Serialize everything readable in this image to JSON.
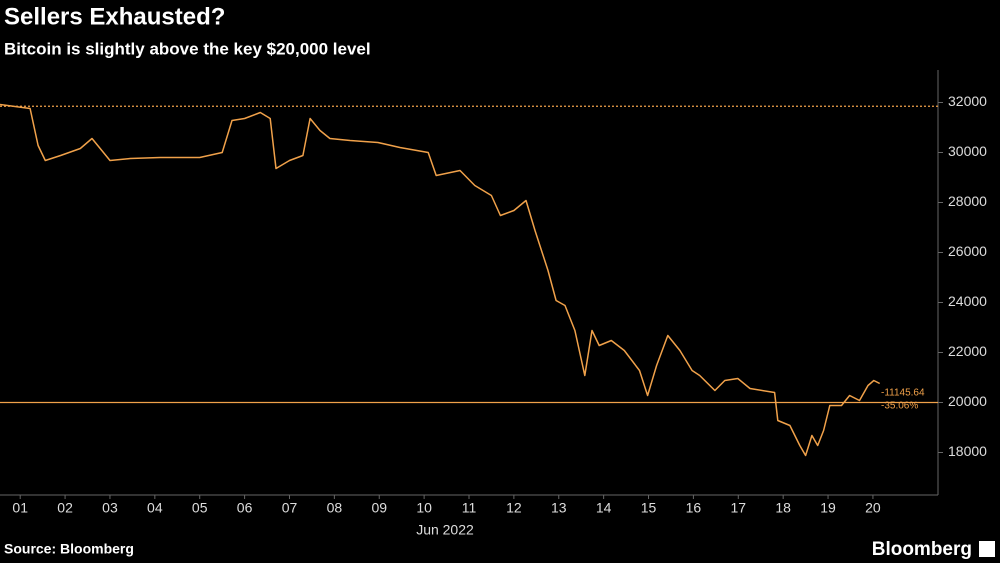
{
  "chart_data": {
    "type": "line",
    "title": "Sellers Exhausted?",
    "subtitle": "Bitcoin is slightly above the key $20,000 level",
    "x_label": "Jun 2022",
    "source": "Source: Bloomberg",
    "brand": "Bloomberg",
    "color": "#f0a14a",
    "x": [
      0.55,
      1.22,
      1.4,
      1.56,
      1.9,
      2.34,
      2.6,
      3.0,
      3.45,
      4.12,
      5.0,
      5.5,
      5.72,
      6.0,
      6.35,
      6.57,
      6.7,
      7.0,
      7.3,
      7.46,
      7.68,
      7.9,
      8.35,
      8.97,
      9.46,
      10.09,
      10.27,
      10.8,
      11.13,
      11.5,
      11.7,
      12.0,
      12.27,
      12.47,
      12.76,
      12.94,
      13.14,
      13.36,
      13.58,
      13.74,
      13.9,
      14.17,
      14.46,
      14.8,
      14.98,
      15.18,
      15.43,
      15.7,
      15.97,
      16.14,
      16.48,
      16.7,
      16.99,
      17.26,
      17.81,
      17.88,
      18.15,
      18.37,
      18.5,
      18.64,
      18.77,
      18.9,
      19.04,
      19.3,
      19.48,
      19.7,
      19.89,
      20.02,
      20.15
    ],
    "values": [
      31920,
      31760,
      30280,
      29680,
      29880,
      30160,
      30560,
      29680,
      29760,
      29800,
      29800,
      30000,
      31280,
      31360,
      31600,
      31360,
      29360,
      29680,
      29880,
      31360,
      30880,
      30560,
      30480,
      30400,
      30200,
      30000,
      29080,
      29280,
      28680,
      28280,
      27480,
      27680,
      28080,
      26880,
      25280,
      24080,
      23880,
      22880,
      21080,
      22880,
      22280,
      22480,
      22080,
      21280,
      20280,
      21480,
      22680,
      22080,
      21280,
      21080,
      20480,
      20880,
      20960,
      20560,
      20400,
      19280,
      19080,
      18280,
      17880,
      18680,
      18280,
      18880,
      19880,
      19880,
      20280,
      20080,
      20680,
      20880,
      20760
    ],
    "xlim": [
      0.55,
      21.45
    ],
    "xticks": [
      {
        "value": 1,
        "label": "01"
      },
      {
        "value": 2,
        "label": "02"
      },
      {
        "value": 3,
        "label": "03"
      },
      {
        "value": 4,
        "label": "04"
      },
      {
        "value": 5,
        "label": "05"
      },
      {
        "value": 6,
        "label": "06"
      },
      {
        "value": 7,
        "label": "07"
      },
      {
        "value": 8,
        "label": "08"
      },
      {
        "value": 9,
        "label": "09"
      },
      10,
      11,
      12,
      13,
      14,
      15,
      16,
      17,
      18,
      19,
      20
    ],
    "ylim": [
      16300,
      33300
    ],
    "yticks": [
      18000,
      20000,
      22000,
      24000,
      26000,
      28000,
      30000,
      32000
    ],
    "reference_lines": [
      {
        "value": 31850,
        "style": "dotted"
      },
      {
        "value": 20000,
        "style": "solid"
      }
    ],
    "annotations": [
      "-11145.64",
      "-35.06%"
    ]
  }
}
